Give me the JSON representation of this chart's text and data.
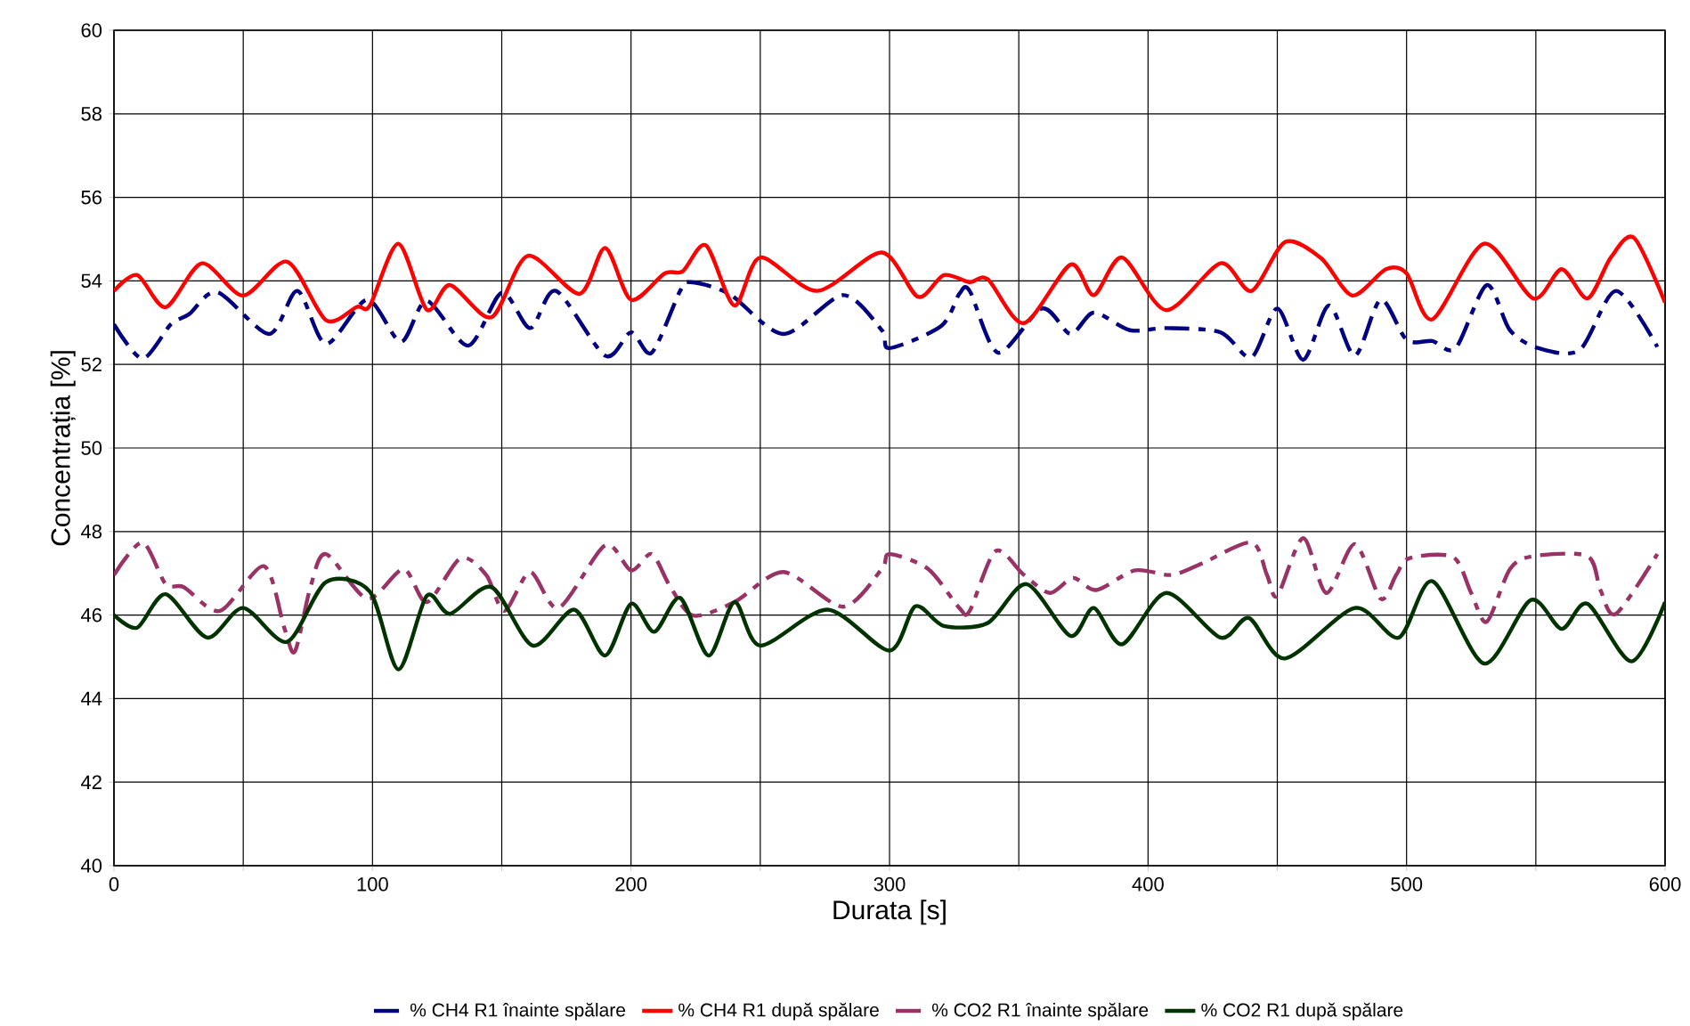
{
  "chart_data": {
    "type": "line",
    "xlabel": "Durata [s]",
    "ylabel": "Concentrația [%]",
    "xlim": [
      0,
      600
    ],
    "ylim": [
      40,
      60
    ],
    "xticks": [
      0,
      {
        "value": 50,
        "label": null
      },
      100,
      {
        "value": 150,
        "label": null
      },
      200,
      {
        "value": 250,
        "label": null
      },
      300,
      {
        "value": 350,
        "label": null
      },
      400,
      {
        "value": 450,
        "label": null
      },
      500,
      {
        "value": 550,
        "label": null
      },
      600
    ],
    "yticks": [
      40,
      42,
      44,
      46,
      48,
      50,
      52,
      54,
      56,
      58,
      60
    ],
    "grid": true,
    "legend": "bottom",
    "marker": "none",
    "series": [
      {
        "name": "% CH4 R1 înainte spălare",
        "color": "#000080",
        "line_style": "dashed",
        "x": [
          0,
          11,
          22,
          29,
          40,
          60,
          71,
          82,
          98,
          111,
          121,
          137,
          150,
          161,
          171,
          190,
          200,
          208,
          219,
          223,
          238,
          259,
          282,
          297,
          300,
          320,
          327,
          331,
          342,
          359,
          370,
          379,
          393,
          407,
          428,
          440,
          450,
          460,
          470,
          480,
          490,
          500,
          510,
          519,
          531,
          540,
          551,
          567,
          581,
          597
        ],
        "values": [
          52.96,
          52.14,
          52.96,
          53.2,
          53.73,
          52.73,
          53.76,
          52.49,
          53.55,
          52.54,
          53.52,
          52.45,
          53.72,
          52.87,
          53.76,
          52.21,
          52.77,
          52.28,
          53.76,
          53.97,
          53.69,
          52.73,
          53.66,
          52.82,
          52.39,
          52.92,
          53.69,
          53.76,
          52.28,
          53.34,
          52.73,
          53.24,
          52.82,
          52.87,
          52.77,
          52.17,
          53.34,
          52.11,
          53.41,
          52.21,
          53.55,
          52.59,
          52.56,
          52.39,
          53.9,
          52.82,
          52.39,
          52.35,
          53.76,
          52.42
        ]
      },
      {
        "name": "% CH4 R1 după spălare",
        "color": "#ff0000",
        "line_style": "solid",
        "x": [
          0,
          9,
          20,
          34,
          50,
          67,
          82,
          94,
          99,
          110,
          121,
          130,
          146,
          160,
          180,
          190,
          200,
          213,
          220,
          229,
          240,
          250,
          272,
          297,
          311,
          321,
          331,
          338,
          352,
          370,
          379,
          390,
          407,
          428,
          440,
          453,
          467,
          479,
          492,
          500,
          510,
          530,
          549,
          560,
          570,
          579,
          588,
          600
        ],
        "values": [
          53.76,
          54.14,
          53.37,
          54.42,
          53.65,
          54.46,
          53.06,
          53.38,
          53.41,
          54.89,
          53.31,
          53.9,
          53.13,
          54.6,
          53.69,
          54.79,
          53.55,
          54.18,
          54.23,
          54.85,
          53.41,
          54.56,
          53.76,
          54.68,
          53.62,
          54.14,
          53.97,
          54.04,
          52.99,
          54.39,
          53.66,
          54.56,
          53.3,
          54.42,
          53.76,
          54.93,
          54.54,
          53.65,
          54.28,
          54.18,
          53.08,
          54.89,
          53.58,
          54.28,
          53.58,
          54.56,
          55.03,
          53.48
        ]
      },
      {
        "name": "% CO2 R1 înainte spălare",
        "color": "#993366",
        "line_style": "dashed",
        "x": [
          0,
          11,
          20,
          27,
          41,
          58,
          66,
          70,
          76,
          82,
          98,
          112,
          121,
          134,
          144,
          151,
          161,
          172,
          190,
          200,
          208,
          215,
          224,
          240,
          259,
          282,
          297,
          300,
          315,
          327,
          331,
          341,
          352,
          362,
          371,
          380,
          395,
          409,
          421,
          440,
          446,
          450,
          460,
          469,
          480,
          490,
          496,
          501,
          518,
          525,
          531,
          540,
          549,
          570,
          575,
          581,
          597
        ],
        "values": [
          46.96,
          47.74,
          46.74,
          46.67,
          46.1,
          47.17,
          45.67,
          45.13,
          46.67,
          47.46,
          46.39,
          47.1,
          46.31,
          47.36,
          46.96,
          46.1,
          47.03,
          46.17,
          47.67,
          47.07,
          47.46,
          46.7,
          45.99,
          46.31,
          47.03,
          46.2,
          47.1,
          47.46,
          47.1,
          46.17,
          46.1,
          47.53,
          46.96,
          46.53,
          46.89,
          46.6,
          47.07,
          46.96,
          47.24,
          47.74,
          46.96,
          46.46,
          47.84,
          46.53,
          47.7,
          46.39,
          46.96,
          47.36,
          47.39,
          46.53,
          45.84,
          47.1,
          47.41,
          47.41,
          46.6,
          46.03,
          47.46
        ]
      },
      {
        "name": "% CO2 R1 după spălare",
        "color": "#003300",
        "line_style": "solid",
        "x": [
          0,
          9,
          20,
          36,
          50,
          67,
          82,
          99,
          110,
          121,
          130,
          146,
          162,
          178,
          190,
          200,
          209,
          219,
          230,
          240,
          250,
          276,
          300,
          310,
          321,
          338,
          353,
          370,
          379,
          390,
          407,
          428,
          439,
          453,
          480,
          497,
          510,
          530,
          548,
          560,
          570,
          587,
          600
        ],
        "values": [
          46.0,
          45.7,
          46.5,
          45.46,
          46.17,
          45.36,
          46.79,
          46.56,
          44.7,
          46.46,
          46.03,
          46.67,
          45.27,
          46.13,
          45.03,
          46.27,
          45.6,
          46.41,
          45.03,
          46.31,
          45.27,
          46.13,
          45.15,
          46.21,
          45.74,
          45.81,
          46.74,
          45.5,
          46.17,
          45.3,
          46.53,
          45.46,
          45.93,
          44.96,
          46.17,
          45.46,
          46.81,
          44.84,
          46.36,
          45.67,
          46.27,
          44.89,
          46.31
        ]
      }
    ]
  }
}
